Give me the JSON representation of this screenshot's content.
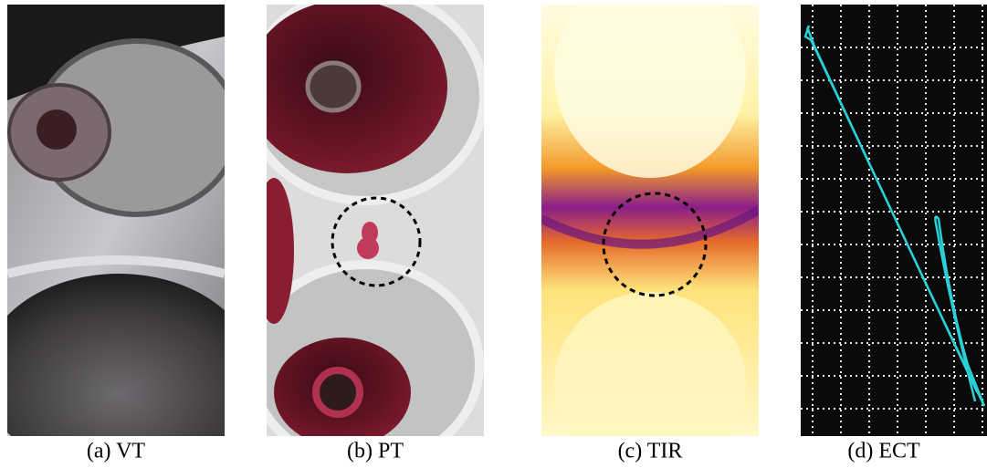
{
  "panels": [
    {
      "caption": "(a) VT"
    },
    {
      "caption": "(b) PT"
    },
    {
      "caption": "(c) TIR"
    },
    {
      "caption": "(d) ECT"
    }
  ]
}
